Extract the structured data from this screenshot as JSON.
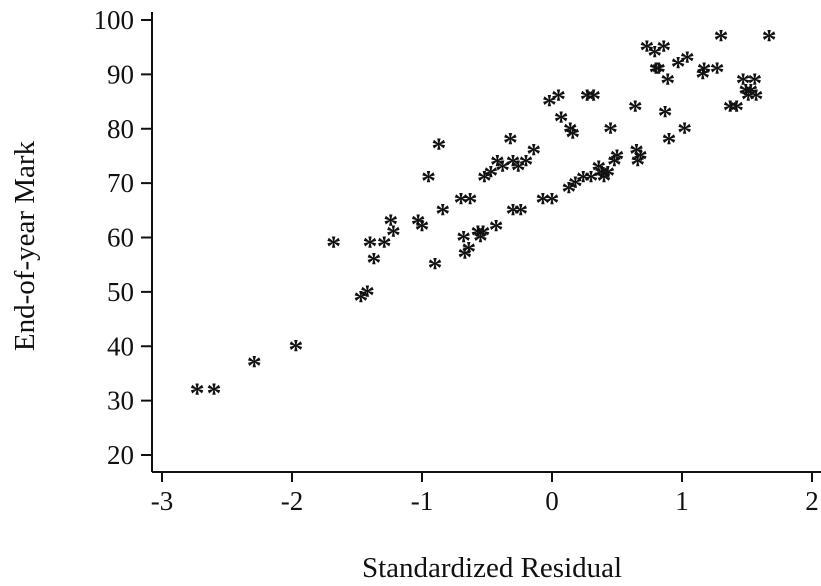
{
  "chart_data": {
    "type": "scatter",
    "title": "",
    "xlabel": "Standardized Residual",
    "ylabel": "End-of-year Mark",
    "xlim": [
      -3.05,
      2.05
    ],
    "ylim": [
      15,
      101
    ],
    "xticks": [
      "-3",
      "-2",
      "-1",
      "0",
      "1",
      "2"
    ],
    "yticks": [
      "20",
      "30",
      "40",
      "50",
      "60",
      "70",
      "80",
      "90",
      "100"
    ],
    "marker": "*",
    "grid": false,
    "points": [
      {
        "x": -2.73,
        "y": 32
      },
      {
        "x": -2.6,
        "y": 32
      },
      {
        "x": -2.29,
        "y": 37
      },
      {
        "x": -1.97,
        "y": 40
      },
      {
        "x": -1.68,
        "y": 59
      },
      {
        "x": -1.47,
        "y": 49
      },
      {
        "x": -1.42,
        "y": 50
      },
      {
        "x": -1.4,
        "y": 59
      },
      {
        "x": -1.37,
        "y": 56
      },
      {
        "x": -1.29,
        "y": 59
      },
      {
        "x": -1.24,
        "y": 63
      },
      {
        "x": -1.22,
        "y": 61
      },
      {
        "x": -1.03,
        "y": 63
      },
      {
        "x": -1.0,
        "y": 62
      },
      {
        "x": -0.95,
        "y": 71
      },
      {
        "x": -0.9,
        "y": 55
      },
      {
        "x": -0.87,
        "y": 77
      },
      {
        "x": -0.84,
        "y": 65
      },
      {
        "x": -0.7,
        "y": 67
      },
      {
        "x": -0.68,
        "y": 60
      },
      {
        "x": -0.67,
        "y": 57
      },
      {
        "x": -0.64,
        "y": 58
      },
      {
        "x": -0.63,
        "y": 67
      },
      {
        "x": -0.57,
        "y": 61
      },
      {
        "x": -0.55,
        "y": 60
      },
      {
        "x": -0.53,
        "y": 61
      },
      {
        "x": -0.52,
        "y": 71
      },
      {
        "x": -0.47,
        "y": 72
      },
      {
        "x": -0.43,
        "y": 62
      },
      {
        "x": -0.42,
        "y": 74
      },
      {
        "x": -0.38,
        "y": 73
      },
      {
        "x": -0.32,
        "y": 78
      },
      {
        "x": -0.3,
        "y": 74
      },
      {
        "x": -0.3,
        "y": 65
      },
      {
        "x": -0.26,
        "y": 73
      },
      {
        "x": -0.24,
        "y": 65
      },
      {
        "x": -0.2,
        "y": 74
      },
      {
        "x": -0.14,
        "y": 76
      },
      {
        "x": -0.07,
        "y": 67
      },
      {
        "x": -0.02,
        "y": 85
      },
      {
        "x": 0.0,
        "y": 67
      },
      {
        "x": 0.05,
        "y": 86
      },
      {
        "x": 0.07,
        "y": 82
      },
      {
        "x": 0.13,
        "y": 69
      },
      {
        "x": 0.14,
        "y": 80
      },
      {
        "x": 0.16,
        "y": 79
      },
      {
        "x": 0.18,
        "y": 70
      },
      {
        "x": 0.24,
        "y": 71
      },
      {
        "x": 0.27,
        "y": 86
      },
      {
        "x": 0.3,
        "y": 71
      },
      {
        "x": 0.32,
        "y": 86
      },
      {
        "x": 0.36,
        "y": 73
      },
      {
        "x": 0.38,
        "y": 72
      },
      {
        "x": 0.4,
        "y": 71
      },
      {
        "x": 0.43,
        "y": 72
      },
      {
        "x": 0.45,
        "y": 80
      },
      {
        "x": 0.48,
        "y": 74
      },
      {
        "x": 0.5,
        "y": 75
      },
      {
        "x": 0.64,
        "y": 84
      },
      {
        "x": 0.65,
        "y": 76
      },
      {
        "x": 0.66,
        "y": 74
      },
      {
        "x": 0.68,
        "y": 75
      },
      {
        "x": 0.73,
        "y": 95
      },
      {
        "x": 0.79,
        "y": 94
      },
      {
        "x": 0.8,
        "y": 91
      },
      {
        "x": 0.82,
        "y": 91
      },
      {
        "x": 0.86,
        "y": 95
      },
      {
        "x": 0.87,
        "y": 83
      },
      {
        "x": 0.89,
        "y": 89
      },
      {
        "x": 0.9,
        "y": 78
      },
      {
        "x": 0.97,
        "y": 92
      },
      {
        "x": 1.02,
        "y": 80
      },
      {
        "x": 1.04,
        "y": 93
      },
      {
        "x": 1.16,
        "y": 90
      },
      {
        "x": 1.17,
        "y": 91
      },
      {
        "x": 1.27,
        "y": 91
      },
      {
        "x": 1.3,
        "y": 97
      },
      {
        "x": 1.37,
        "y": 84
      },
      {
        "x": 1.42,
        "y": 84
      },
      {
        "x": 1.47,
        "y": 89
      },
      {
        "x": 1.49,
        "y": 87
      },
      {
        "x": 1.51,
        "y": 86
      },
      {
        "x": 1.53,
        "y": 87
      },
      {
        "x": 1.56,
        "y": 89
      },
      {
        "x": 1.57,
        "y": 86
      },
      {
        "x": 1.67,
        "y": 97
      }
    ]
  }
}
